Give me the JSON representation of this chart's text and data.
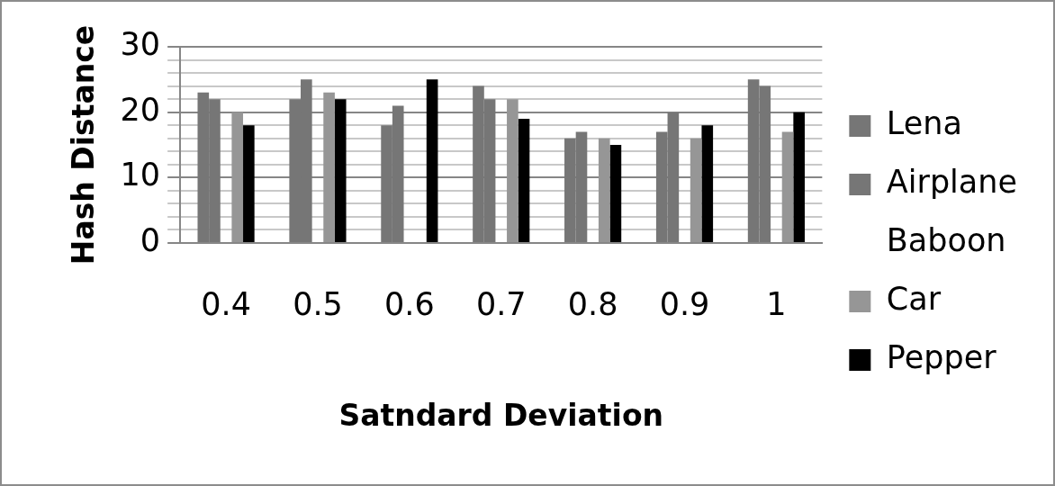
{
  "chart_data": {
    "type": "bar",
    "xlabel": "Satndard Deviation",
    "ylabel": "Hash Distance",
    "categories": [
      "0.4",
      "0.5",
      "0.6",
      "0.7",
      "0.8",
      "0.9",
      "1"
    ],
    "series": [
      {
        "name": "Lena",
        "color": "#767676",
        "values": [
          23,
          22,
          18,
          24,
          16,
          17,
          25
        ]
      },
      {
        "name": "Airplane",
        "color": "#767676",
        "values": [
          22,
          25,
          21,
          22,
          17,
          20,
          24
        ]
      },
      {
        "name": "Baboon",
        "values": [
          null,
          null,
          null,
          null,
          null,
          null,
          null
        ]
      },
      {
        "name": "Car",
        "color": "#969696",
        "values": [
          20,
          23,
          null,
          22,
          16,
          16,
          17
        ]
      },
      {
        "name": "Pepper",
        "color": "#000000",
        "values": [
          18,
          22,
          25,
          19,
          15,
          18,
          20
        ]
      }
    ],
    "ylim": [
      0,
      30
    ],
    "yticks": [
      0,
      {
        "value": 2,
        "label": null
      },
      {
        "value": 4,
        "label": null
      },
      {
        "value": 6,
        "label": null
      },
      {
        "value": 8,
        "label": null
      },
      10,
      {
        "value": 12,
        "label": null
      },
      {
        "value": 14,
        "label": null
      },
      {
        "value": 16,
        "label": null
      },
      {
        "value": 18,
        "label": null
      },
      20,
      {
        "value": 22,
        "label": null
      },
      {
        "value": 24,
        "label": null
      },
      {
        "value": 26,
        "label": null
      },
      {
        "value": 28,
        "label": null
      },
      30
    ],
    "grid": true,
    "legend": "right"
  }
}
